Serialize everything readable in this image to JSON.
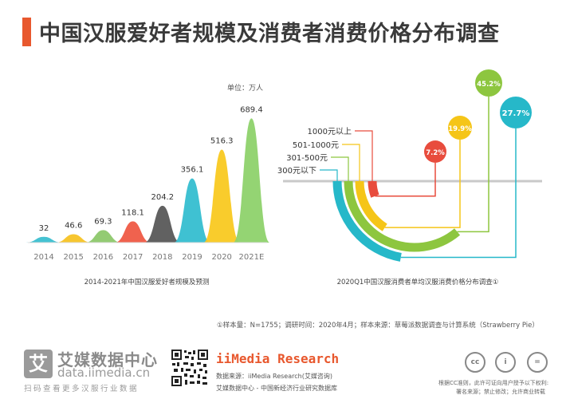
{
  "page": {
    "title": "中国汉服爱好者规模及消费者消费价格分布调查",
    "footnote": "①样本量：N=1755；调研时间：2020年4月；样本来源：草莓派数据调查与计算系统（Strawberry Pie）"
  },
  "chart_data": [
    {
      "type": "bar",
      "caption": "2014-2021年中国汉服爱好者规模及预测",
      "unit": "单位：万人",
      "categories": [
        "2014",
        "2015",
        "2016",
        "2017",
        "2018",
        "2019",
        "2020",
        "2021E"
      ],
      "values": [
        32,
        46.6,
        69.3,
        118.1,
        204.2,
        356.1,
        516.3,
        689.4
      ],
      "value_labels": [
        "32",
        "46.6",
        "69.3",
        "118.1",
        "204.2",
        "356.1",
        "516.3",
        "689.4"
      ],
      "colors": [
        "#3bbfd0",
        "#f7c325",
        "#8dc86b",
        "#ef5a44",
        "#595959",
        "#35bed0",
        "#f9c921",
        "#8ed26b"
      ],
      "ylim": [
        0,
        700
      ]
    },
    {
      "type": "pie",
      "caption": "2020Q1中国汉服消费者单均汉服消费价格分布调查①",
      "categories": [
        "300元以下",
        "301-500元",
        "501-1000元",
        "1000元以上"
      ],
      "values": [
        27.7,
        45.2,
        19.9,
        7.2
      ],
      "value_labels": [
        "27.7%",
        "45.2%",
        "19.9%",
        "7.2%"
      ],
      "colors": [
        "#26b8c9",
        "#8dc63f",
        "#f5c518",
        "#e84c3d"
      ]
    }
  ],
  "footer": {
    "logo_char": "艾",
    "logo_name": "艾媒数据中心",
    "logo_url": "data.iimedia.cn",
    "logo_scan": "扫码查看更多汉服行业数据",
    "brand": "iiMedia Research",
    "source_line1": "数据来源：iiMedia Research(艾媒咨询)",
    "source_line2": "艾媒数据中心 - 中国新经济行业研究数据库",
    "cc_labels": [
      "cc",
      "i",
      "="
    ],
    "license_line1": "根据CC准则，此许可证向用户授予以下权利:",
    "license_line2": "署名来源；禁止修改；允许商业转载"
  }
}
